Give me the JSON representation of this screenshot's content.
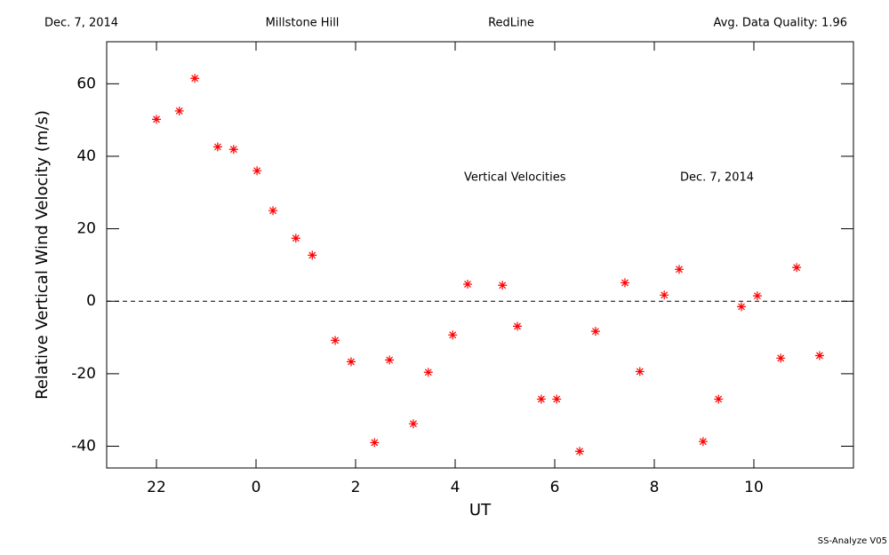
{
  "header": {
    "date": "Dec. 7, 2014",
    "site": "Millstone Hill",
    "line": "RedLine",
    "quality": "Avg. Data Quality: 1.96"
  },
  "footer": "SS-Analyze V05",
  "chart_data": {
    "type": "scatter",
    "annotations": [
      "Vertical Velocities",
      "Dec. 7, 2014"
    ],
    "xlabel": "UT",
    "ylabel": "Relative Vertical Wind Velocity (m/s)",
    "xlim": [
      -3,
      12
    ],
    "ylim": [
      -46,
      71.6
    ],
    "xticks": [
      {
        "value": -2,
        "label": "22"
      },
      0,
      2,
      4,
      6,
      8,
      10
    ],
    "yticks": [
      -40,
      -20,
      0,
      20,
      40,
      60
    ],
    "hline": 0,
    "color": "#ff0000",
    "x": [
      -2.0,
      -1.54,
      -1.23,
      -0.77,
      -0.45,
      0.02,
      0.34,
      0.8,
      1.13,
      1.59,
      1.91,
      2.38,
      2.68,
      3.16,
      3.46,
      3.95,
      4.25,
      4.95,
      5.25,
      5.73,
      6.04,
      6.5,
      6.82,
      7.41,
      7.71,
      8.2,
      8.5,
      8.98,
      9.29,
      9.75,
      10.07,
      10.54,
      10.86,
      11.32
    ],
    "values": [
      50.2,
      52.5,
      61.5,
      42.6,
      41.9,
      36.0,
      25.0,
      17.4,
      12.7,
      -10.8,
      -16.7,
      -39.0,
      -16.2,
      -33.8,
      -19.6,
      -9.3,
      4.7,
      4.4,
      -6.9,
      -27.0,
      -27.0,
      -41.4,
      -8.3,
      5.1,
      -19.4,
      1.7,
      8.8,
      -38.7,
      -27.0,
      -1.5,
      1.5,
      -15.7,
      9.3,
      -15.0
    ]
  }
}
